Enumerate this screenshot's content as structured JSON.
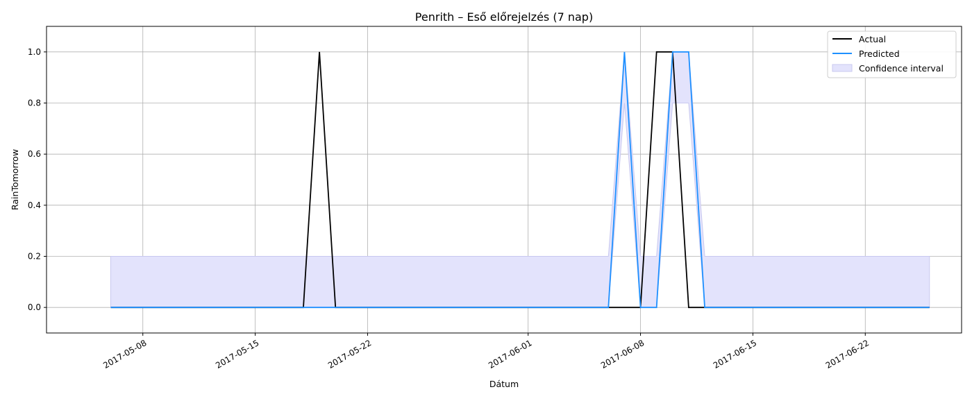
{
  "chart_data": {
    "type": "line",
    "title": "Penrith – Eső előrejelzés (7 nap)",
    "xlabel": "Dátum",
    "ylabel": "RainTomorrow",
    "x_range": [
      "2017-05-02",
      "2017-06-28"
    ],
    "ylim": [
      -0.1,
      1.1
    ],
    "x_ticks": [
      "2017-05-08",
      "2017-05-15",
      "2017-05-22",
      "2017-06-01",
      "2017-06-08",
      "2017-06-15",
      "2017-06-22"
    ],
    "y_ticks": [
      "0.0",
      "0.2",
      "0.4",
      "0.6",
      "0.8",
      "1.0"
    ],
    "grid": true,
    "legend_position": "upper right",
    "series": [
      {
        "name": "Actual",
        "color": "#000000",
        "points": [
          [
            "2017-05-06",
            0
          ],
          [
            "2017-05-18",
            0
          ],
          [
            "2017-05-19",
            1
          ],
          [
            "2017-05-20",
            0
          ],
          [
            "2017-06-08",
            0
          ],
          [
            "2017-06-09",
            1
          ],
          [
            "2017-06-10",
            1
          ],
          [
            "2017-06-11",
            0
          ],
          [
            "2017-06-26",
            0
          ]
        ]
      },
      {
        "name": "Predicted",
        "color": "#1e90ff",
        "points": [
          [
            "2017-05-06",
            0
          ],
          [
            "2017-06-06",
            0
          ],
          [
            "2017-06-07",
            1
          ],
          [
            "2017-06-08",
            0
          ],
          [
            "2017-06-09",
            0
          ],
          [
            "2017-06-10",
            1
          ],
          [
            "2017-06-11",
            1
          ],
          [
            "2017-06-12",
            0
          ],
          [
            "2017-06-26",
            0
          ]
        ]
      }
    ],
    "band": {
      "name": "Confidence interval",
      "color": "#e3e3fc",
      "edge_color": "#c8c8ef",
      "points": [
        [
          "2017-05-06",
          0,
          0.2
        ],
        [
          "2017-06-06",
          0,
          0.2
        ],
        [
          "2017-06-07",
          0.8,
          1.0
        ],
        [
          "2017-06-08",
          0,
          0.2
        ],
        [
          "2017-06-09",
          0,
          0.2
        ],
        [
          "2017-06-10",
          0.8,
          1.0
        ],
        [
          "2017-06-11",
          0.8,
          1.0
        ],
        [
          "2017-06-12",
          0,
          0.2
        ],
        [
          "2017-06-26",
          0,
          0.2
        ]
      ]
    }
  }
}
